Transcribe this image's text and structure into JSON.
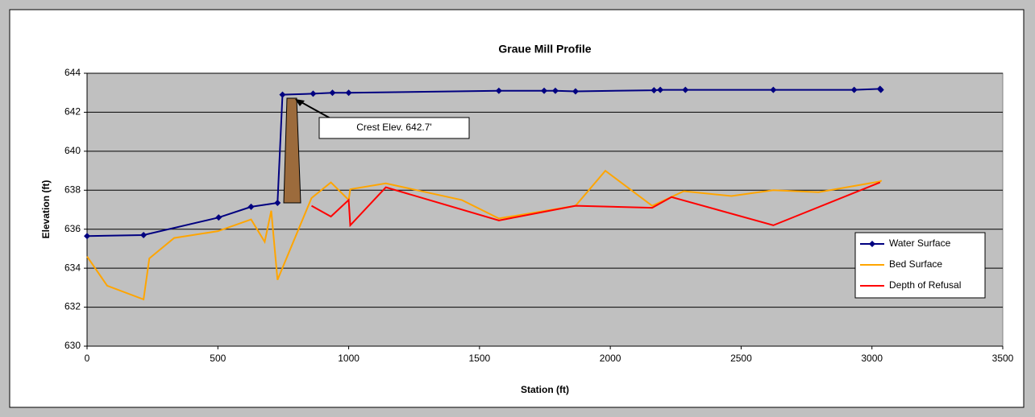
{
  "chart_data": {
    "type": "line",
    "title": "Graue Mill Profile",
    "x_label": "Station (ft)",
    "y_label": "Elevation (ft)",
    "annotation": "Crest Elev. 642.7'",
    "xlim": [
      0,
      3500
    ],
    "xticks": [
      0,
      500,
      1000,
      1500,
      2000,
      2500,
      3000,
      3500
    ],
    "ylim": [
      630,
      644
    ],
    "yticks": [
      630,
      632,
      634,
      636,
      638,
      640,
      642,
      644
    ],
    "grid": true,
    "legend": "right",
    "series": [
      {
        "name": "Water Surface",
        "color": "#000080",
        "marker": "diamond",
        "x": [
          0,
          216,
          503,
          627,
          728,
          747,
          864,
          938,
          1000,
          1574,
          1747,
          1790,
          1867,
          2167,
          2191,
          2287,
          2623,
          2932,
          3031,
          3034
        ],
        "values": [
          635.65,
          635.7,
          636.6,
          637.15,
          637.35,
          642.9,
          642.95,
          643.0,
          643.0,
          643.1,
          643.1,
          643.1,
          643.07,
          643.13,
          643.15,
          643.15,
          643.15,
          643.15,
          643.2,
          643.15
        ]
      },
      {
        "name": "Bed Surface",
        "color": "#ffa500",
        "x": [
          0,
          77,
          216,
          238,
          333,
          500,
          627,
          679,
          704,
          728,
          858,
          932,
          1000,
          1006,
          1142,
          1432,
          1574,
          1867,
          1981,
          2160,
          2281,
          2463,
          2623,
          2796,
          3031,
          3037
        ],
        "values": [
          634.6,
          633.1,
          632.4,
          634.5,
          635.55,
          635.9,
          636.5,
          635.35,
          636.95,
          633.4,
          637.6,
          638.4,
          637.5,
          638.05,
          638.35,
          637.5,
          636.55,
          637.2,
          639.0,
          637.2,
          637.95,
          637.7,
          638.0,
          637.9,
          638.45,
          638.5
        ]
      },
      {
        "name": "Depth of Refusal",
        "color": "#ff0000",
        "x": [
          858,
          932,
          1000,
          1006,
          1142,
          1574,
          1867,
          2160,
          2234,
          2623,
          3031
        ],
        "values": [
          637.2,
          636.65,
          637.5,
          636.2,
          638.15,
          636.45,
          637.2,
          637.1,
          637.65,
          636.2,
          638.4
        ]
      }
    ]
  }
}
